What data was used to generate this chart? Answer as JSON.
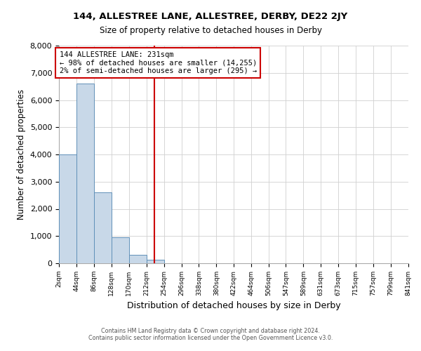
{
  "title": "144, ALLESTREE LANE, ALLESTREE, DERBY, DE22 2JY",
  "subtitle": "Size of property relative to detached houses in Derby",
  "xlabel": "Distribution of detached houses by size in Derby",
  "ylabel": "Number of detached properties",
  "footer_line1": "Contains HM Land Registry data © Crown copyright and database right 2024.",
  "footer_line2": "Contains public sector information licensed under the Open Government Licence v3.0.",
  "bin_edges": [
    2,
    44,
    86,
    128,
    170,
    212,
    254,
    296,
    338,
    380,
    422,
    464,
    506,
    547,
    589,
    631,
    673,
    715,
    757,
    799,
    841
  ],
  "bin_heights": [
    4000,
    6600,
    2600,
    950,
    320,
    130,
    0,
    0,
    0,
    0,
    0,
    0,
    0,
    0,
    0,
    0,
    0,
    0,
    0,
    0
  ],
  "bar_color": "#c8d8e8",
  "bar_edge_color": "#6090b8",
  "property_value": 231,
  "property_line_color": "#cc0000",
  "annotation_line1": "144 ALLESTREE LANE: 231sqm",
  "annotation_line2": "← 98% of detached houses are smaller (14,255)",
  "annotation_line3": "2% of semi-detached houses are larger (295) →",
  "annotation_box_color": "#cc0000",
  "ylim": [
    0,
    8000
  ],
  "yticks": [
    0,
    1000,
    2000,
    3000,
    4000,
    5000,
    6000,
    7000,
    8000
  ],
  "tick_labels": [
    "2sqm",
    "44sqm",
    "86sqm",
    "128sqm",
    "170sqm",
    "212sqm",
    "254sqm",
    "296sqm",
    "338sqm",
    "380sqm",
    "422sqm",
    "464sqm",
    "506sqm",
    "547sqm",
    "589sqm",
    "631sqm",
    "673sqm",
    "715sqm",
    "757sqm",
    "799sqm",
    "841sqm"
  ],
  "background_color": "#ffffff",
  "grid_color": "#d0d0d0"
}
